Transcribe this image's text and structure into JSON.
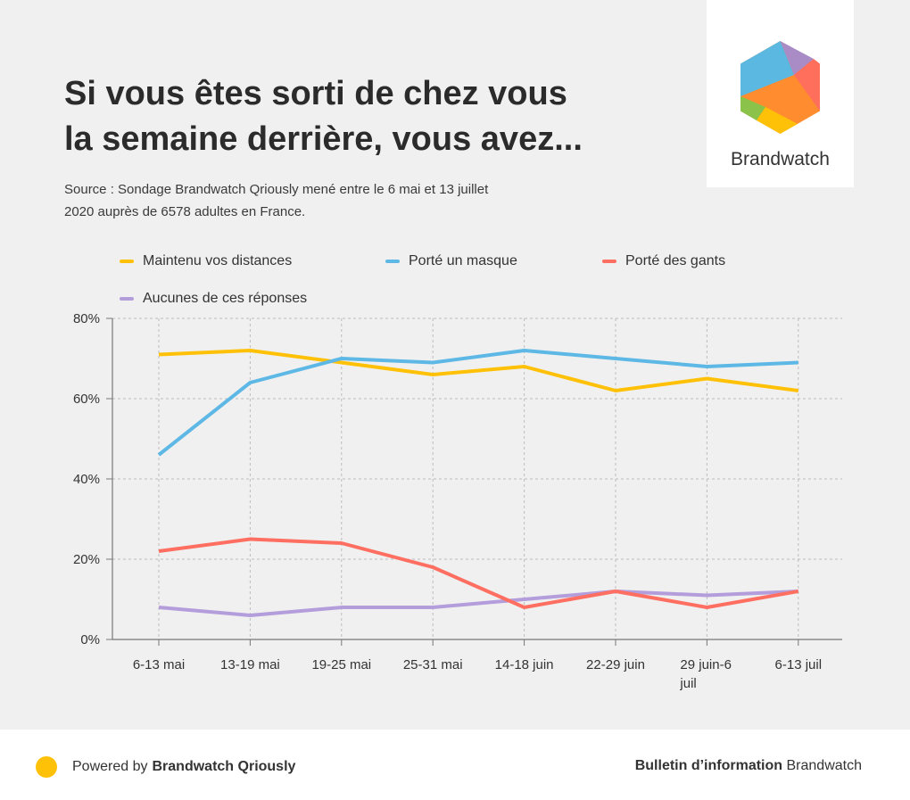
{
  "header": {
    "title_line1": "Si vous êtes sorti de chez vous",
    "title_line2": "la semaine derrière, vous avez...",
    "source_line1": "Source : Sondage Brandwatch Qriously mené entre le 6 mai et 13 juillet",
    "source_line2": "2020 auprès de 6578 adultes en France."
  },
  "logo": {
    "name": "Brandwatch"
  },
  "footer": {
    "powered_prefix": "Powered by",
    "powered_brand": "Brandwatch Qriously",
    "bulletin_bold": "Bulletin d’information",
    "bulletin_rest": "Brandwatch",
    "dot_color": "#FFC107"
  },
  "chart_data": {
    "type": "line",
    "categories": [
      "6-13 mai",
      "13-19 mai",
      "19-25 mai",
      "25-31 mai",
      "14-18 juin",
      "22-29 juin",
      "29 juin-6 juil",
      "6-13 juil"
    ],
    "category_lines": [
      [
        "6-13 mai"
      ],
      [
        "13-19 mai"
      ],
      [
        "19-25 mai"
      ],
      [
        "25-31 mai"
      ],
      [
        "14-18 juin"
      ],
      [
        "22-29 juin"
      ],
      [
        "29 juin-6",
        "juil"
      ],
      [
        "6-13 juil"
      ]
    ],
    "series": [
      {
        "name": "Maintenu vos distances",
        "color": "#FFC107",
        "values": [
          71,
          72,
          69,
          66,
          68,
          62,
          65,
          62
        ]
      },
      {
        "name": "Porté un masque",
        "color": "#5DB8E5",
        "values": [
          46,
          64,
          70,
          69,
          72,
          70,
          68,
          69
        ]
      },
      {
        "name": "Porté des gants",
        "color": "#FF6F61",
        "values": [
          22,
          25,
          24,
          18,
          8,
          12,
          8,
          12
        ]
      },
      {
        "name": "Aucunes de ces réponses",
        "color": "#B39DDB",
        "values": [
          8,
          6,
          8,
          8,
          10,
          12,
          11,
          12
        ]
      }
    ],
    "yticks": [
      "0%",
      "20%",
      "40%",
      "60%",
      "80%"
    ],
    "ylim": [
      0,
      80
    ],
    "grid": true,
    "legend_position": "top"
  }
}
